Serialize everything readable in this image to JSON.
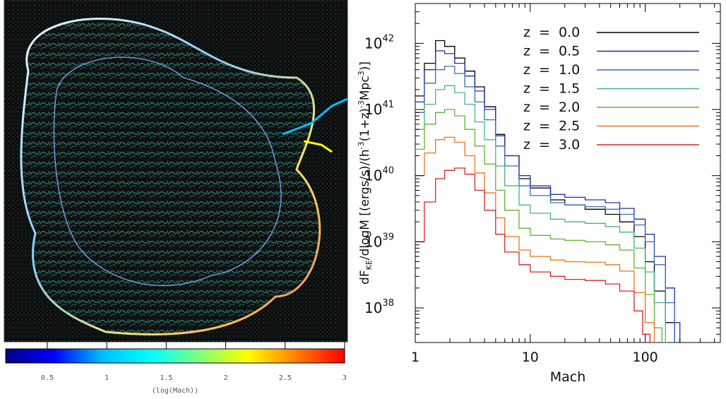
{
  "left_panel": {
    "colorbar": {
      "ticks": [
        "0.5",
        "1",
        "1.5",
        "2",
        "2.5",
        "3"
      ],
      "tick_values": [
        0.5,
        1,
        1.5,
        2,
        2.5,
        3
      ],
      "range": [
        0.15,
        3
      ],
      "label": "(log(Mach))",
      "colormap": [
        "#00007f",
        "#0000ff",
        "#00bfff",
        "#00ffff",
        "#7fff7f",
        "#ffff00",
        "#ff7f00",
        "#ff0000"
      ]
    },
    "image_colors": {
      "background": "#101010",
      "field_lines": "#2a9d8f",
      "shock_fronts": [
        "#ffffff",
        "#87cefa",
        "#ffd700",
        "#ff6347"
      ]
    }
  },
  "chart_data": {
    "type": "line",
    "step": true,
    "x_scale": "log",
    "y_scale": "log",
    "xlim": [
      1,
      450
    ],
    "ylim": [
      3e+37,
      4e+42
    ],
    "xlabel": "Mach",
    "ylabel_parts": {
      "main": "dF",
      "sub": "KE",
      "rest": "/dlogM [(ergs/s)/(h",
      "exp1": "-3",
      "mid": "(1+z)",
      "exp2": "-3",
      "end": "Mpc",
      "exp3": "3",
      "close": ")]"
    },
    "x_tick_labels": [
      {
        "value": 1,
        "label": "1"
      },
      {
        "value": 10,
        "label": "10"
      },
      {
        "value": 100,
        "label": "100"
      }
    ],
    "y_tick_labels": [
      {
        "value": 1e+38,
        "base": "10",
        "exp": "38"
      },
      {
        "value": 1e+39,
        "base": "10",
        "exp": "39"
      },
      {
        "value": 1e+40,
        "base": "10",
        "exp": "40"
      },
      {
        "value": 1e+41,
        "base": "10",
        "exp": "41"
      },
      {
        "value": 1e+42,
        "base": "10",
        "exp": "42"
      }
    ],
    "legend_position": "top-right",
    "series": [
      {
        "name": "z  =  0.0",
        "color": "#000000",
        "x": [
          1,
          1.2,
          1.5,
          1.8,
          2.2,
          2.7,
          3.3,
          4,
          5,
          6,
          8,
          10,
          15,
          20,
          30,
          45,
          60,
          80,
          100,
          120,
          150,
          180,
          200
        ],
        "y": [
          1.6e+41,
          5e+41,
          1.1e+42,
          9e+41,
          6e+41,
          3.8e+41,
          2.2e+41,
          1.1e+41,
          4.2e+40,
          2e+40,
          9e+39,
          6.5e+39,
          4.3e+39,
          3.6e+39,
          3.1e+39,
          2.6e+39,
          2e+39,
          1.2e+39,
          5e+38,
          1.8e+38,
          6e+37,
          2.8e+37,
          2e+37
        ]
      },
      {
        "name": "z  =  0.5",
        "color": "#2b2ba6",
        "x": [
          1,
          1.2,
          1.5,
          1.8,
          2.2,
          2.7,
          3.3,
          4,
          5,
          6,
          8,
          10,
          15,
          20,
          30,
          45,
          60,
          80,
          100,
          120,
          150,
          180,
          200
        ],
        "y": [
          1.3e+41,
          4e+41,
          7.7e+41,
          7e+41,
          5e+41,
          3.2e+41,
          1.9e+41,
          1e+41,
          4e+40,
          2e+40,
          1e+40,
          7e+39,
          5.2e+39,
          4.7e+39,
          4.3e+39,
          3.9e+39,
          3.2e+39,
          2.2e+39,
          1.3e+39,
          6e+38,
          2e+38,
          6e+37,
          2.5e+37
        ]
      },
      {
        "name": "z  =  1.0",
        "color": "#3a6fb5",
        "x": [
          1,
          1.2,
          1.5,
          1.8,
          2.2,
          2.7,
          3.3,
          4,
          5,
          6,
          8,
          10,
          15,
          20,
          30,
          45,
          60,
          80,
          100,
          120,
          150,
          180
        ],
        "y": [
          9e+40,
          2.5e+41,
          4e+41,
          4.5e+41,
          3.5e+41,
          2.2e+41,
          1.3e+41,
          7e+40,
          2.8e+40,
          1.4e+40,
          7e+39,
          5e+39,
          3.9e+39,
          3.6e+39,
          3.4e+39,
          3.1e+39,
          2.6e+39,
          1.8e+39,
          1e+39,
          4.5e+38,
          1.2e+38,
          3e+37
        ]
      },
      {
        "name": "z  =  1.5",
        "color": "#45b38a",
        "x": [
          1,
          1.2,
          1.5,
          1.8,
          2.2,
          2.7,
          3.3,
          4,
          5,
          6,
          8,
          10,
          15,
          20,
          30,
          45,
          60,
          80,
          100,
          120,
          150
        ],
        "y": [
          5e+40,
          1.2e+41,
          2e+41,
          2.3e+41,
          1.8e+41,
          1.2e+41,
          6.5e+40,
          3.5e+40,
          1.4e+40,
          7e+39,
          3.6e+39,
          2.7e+39,
          2.2e+39,
          2e+39,
          1.9e+39,
          1.7e+39,
          1.4e+39,
          8e+38,
          3.5e+38,
          1.2e+38,
          3e+37
        ]
      },
      {
        "name": "z  =  2.0",
        "color": "#5cb531",
        "x": [
          1,
          1.2,
          1.5,
          1.8,
          2.2,
          2.7,
          3.3,
          4,
          5,
          6,
          8,
          10,
          15,
          20,
          30,
          45,
          60,
          80,
          100,
          120,
          140
        ],
        "y": [
          2.5e+40,
          6e+40,
          9e+40,
          1e+41,
          8e+40,
          5e+40,
          2.8e+40,
          1.5e+40,
          6e+39,
          3e+39,
          1.6e+39,
          1.25e+39,
          1.1e+39,
          1.05e+39,
          1e+39,
          9e+38,
          7.5e+38,
          4e+38,
          1.6e+38,
          5e+37,
          2.5e+37
        ]
      },
      {
        "name": "z  =  2.5",
        "color": "#e8751a",
        "x": [
          1,
          1.2,
          1.5,
          1.8,
          2.2,
          2.7,
          3.3,
          4,
          5,
          6,
          8,
          10,
          15,
          20,
          30,
          45,
          60,
          80,
          100,
          120
        ],
        "y": [
          1e+40,
          2.2e+40,
          3.5e+40,
          3.8e+40,
          3.2e+40,
          2e+40,
          1.1e+40,
          5.5e+39,
          2.3e+39,
          1.2e+39,
          7.5e+38,
          6e+38,
          5.3e+38,
          5e+38,
          4.9e+38,
          4.5e+38,
          3.6e+38,
          1.7e+38,
          6e+37,
          2.5e+37
        ]
      },
      {
        "name": "z  =  3.0",
        "color": "#d8232a",
        "x": [
          1,
          1.2,
          1.5,
          1.8,
          2.2,
          2.7,
          3.3,
          4,
          5,
          6,
          8,
          10,
          15,
          20,
          30,
          45,
          60,
          80,
          95,
          110
        ],
        "y": [
          1e+39,
          4e+39,
          9e+39,
          1.2e+40,
          1.3e+40,
          1.05e+40,
          6e+39,
          3e+39,
          1.3e+39,
          7e+38,
          4.5e+38,
          3.5e+38,
          3e+38,
          2.7e+38,
          2.6e+38,
          2.3e+38,
          1.8e+38,
          9e+37,
          4e+37,
          2.5e+37
        ]
      }
    ]
  }
}
